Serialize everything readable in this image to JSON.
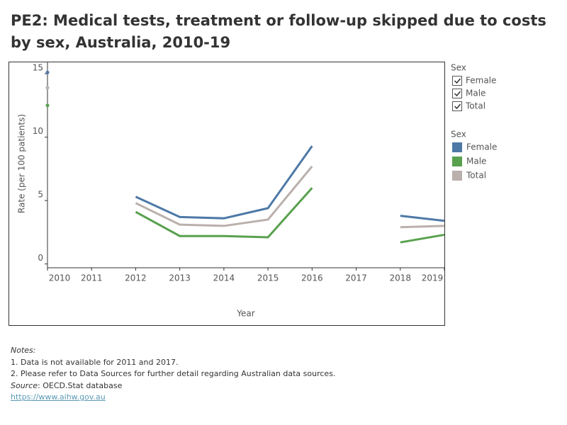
{
  "chart_data": {
    "type": "line",
    "title": "PE2: Medical tests, treatment or follow-up skipped due to costs by sex, Australia, 2010-19",
    "x_label": "Year",
    "y_label": "Rate (per 100 patients)",
    "x": [
      2010,
      2011,
      2012,
      2013,
      2014,
      2015,
      2016,
      2017,
      2018,
      2019
    ],
    "xlim": [
      2010,
      2019
    ],
    "xticks": [
      2010,
      2011,
      2012,
      2013,
      2014,
      2015,
      2016,
      2017,
      2018,
      2019
    ],
    "ylim": [
      -0.3,
      15.9
    ],
    "yticks": [
      0,
      5,
      10,
      15
    ],
    "grid": false,
    "legend_title": "Sex",
    "series": [
      {
        "name": "Female",
        "color": "#4e79a7",
        "values": [
          15.1,
          null,
          5.3,
          3.7,
          3.6,
          4.4,
          9.3,
          null,
          3.8,
          3.4
        ]
      },
      {
        "name": "Male",
        "color": "#59a14f",
        "values": [
          12.5,
          null,
          4.1,
          2.2,
          2.2,
          2.1,
          6.0,
          null,
          1.7,
          2.3
        ]
      },
      {
        "name": "Total",
        "color": "#bab0ac",
        "values": [
          13.9,
          null,
          4.8,
          3.1,
          3.0,
          3.5,
          7.7,
          null,
          2.9,
          3.0
        ]
      }
    ]
  },
  "notes": {
    "heading": "Notes:",
    "lines": [
      "1. Data is not available for 2011 and 2017.",
      "2. Please refer to Data Sources for further detail regarding Australian data sources."
    ],
    "source_label": "Source",
    "source_text": ": OECD.Stat database",
    "link": "https://www.aihw.gov.au"
  }
}
